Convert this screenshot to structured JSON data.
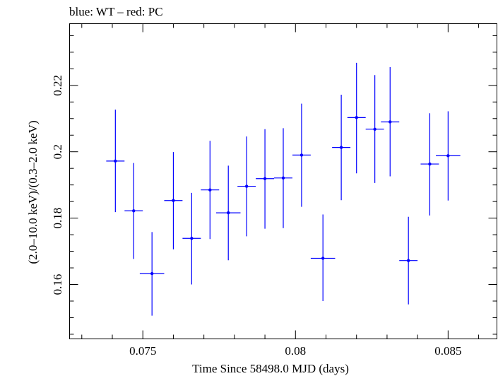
{
  "chart_data": {
    "type": "scatter",
    "title": "blue: WT – red: PC",
    "xlabel": "Time Since 58498.0 MJD (days)",
    "ylabel": "(2.0–10.0 keV)/(0.3–2.0 keV)",
    "xlim": [
      0.0726,
      0.0866
    ],
    "ylim": [
      0.1436,
      0.2386
    ],
    "x_ticks_major": [
      0.075,
      0.08,
      0.085
    ],
    "x_tick_labels": [
      "0.075",
      "0.08",
      "0.085"
    ],
    "y_ticks_major": [
      0.16,
      0.18,
      0.2,
      0.22
    ],
    "y_tick_labels": [
      "0.16",
      "0.18",
      "0.2",
      "0.22"
    ],
    "grid": false,
    "series": [
      {
        "color": "#0000ff",
        "points": [
          {
            "x": 0.0741,
            "y": 0.1972,
            "xerr": 0.0003,
            "ylo": 0.1818,
            "yhi": 0.2127
          },
          {
            "x": 0.0747,
            "y": 0.1822,
            "xerr": 0.0003,
            "ylo": 0.1677,
            "yhi": 0.1966
          },
          {
            "x": 0.0753,
            "y": 0.1633,
            "xerr": 0.0004,
            "ylo": 0.1506,
            "yhi": 0.1758
          },
          {
            "x": 0.076,
            "y": 0.1853,
            "xerr": 0.0003,
            "ylo": 0.1706,
            "yhi": 0.1999
          },
          {
            "x": 0.0766,
            "y": 0.1739,
            "xerr": 0.0003,
            "ylo": 0.16,
            "yhi": 0.1876
          },
          {
            "x": 0.0772,
            "y": 0.1885,
            "xerr": 0.0003,
            "ylo": 0.1737,
            "yhi": 0.2033
          },
          {
            "x": 0.0778,
            "y": 0.1816,
            "xerr": 0.0004,
            "ylo": 0.1673,
            "yhi": 0.1958
          },
          {
            "x": 0.0784,
            "y": 0.1896,
            "xerr": 0.0003,
            "ylo": 0.1745,
            "yhi": 0.2046
          },
          {
            "x": 0.079,
            "y": 0.1919,
            "xerr": 0.0003,
            "ylo": 0.1768,
            "yhi": 0.2068
          },
          {
            "x": 0.0796,
            "y": 0.1921,
            "xerr": 0.0003,
            "ylo": 0.177,
            "yhi": 0.2071
          },
          {
            "x": 0.0802,
            "y": 0.199,
            "xerr": 0.0003,
            "ylo": 0.1834,
            "yhi": 0.2145
          },
          {
            "x": 0.0809,
            "y": 0.1679,
            "xerr": 0.0004,
            "ylo": 0.155,
            "yhi": 0.1811
          },
          {
            "x": 0.0815,
            "y": 0.2013,
            "xerr": 0.0003,
            "ylo": 0.1854,
            "yhi": 0.2172
          },
          {
            "x": 0.082,
            "y": 0.2103,
            "xerr": 0.0003,
            "ylo": 0.1935,
            "yhi": 0.2268
          },
          {
            "x": 0.0826,
            "y": 0.2068,
            "xerr": 0.0003,
            "ylo": 0.1906,
            "yhi": 0.2231
          },
          {
            "x": 0.0831,
            "y": 0.209,
            "xerr": 0.0003,
            "ylo": 0.1926,
            "yhi": 0.2255
          },
          {
            "x": 0.0837,
            "y": 0.1672,
            "xerr": 0.0003,
            "ylo": 0.154,
            "yhi": 0.1804
          },
          {
            "x": 0.0844,
            "y": 0.1963,
            "xerr": 0.0003,
            "ylo": 0.1808,
            "yhi": 0.2116
          },
          {
            "x": 0.085,
            "y": 0.1988,
            "xerr": 0.0004,
            "ylo": 0.1853,
            "yhi": 0.2122
          }
        ]
      }
    ]
  }
}
